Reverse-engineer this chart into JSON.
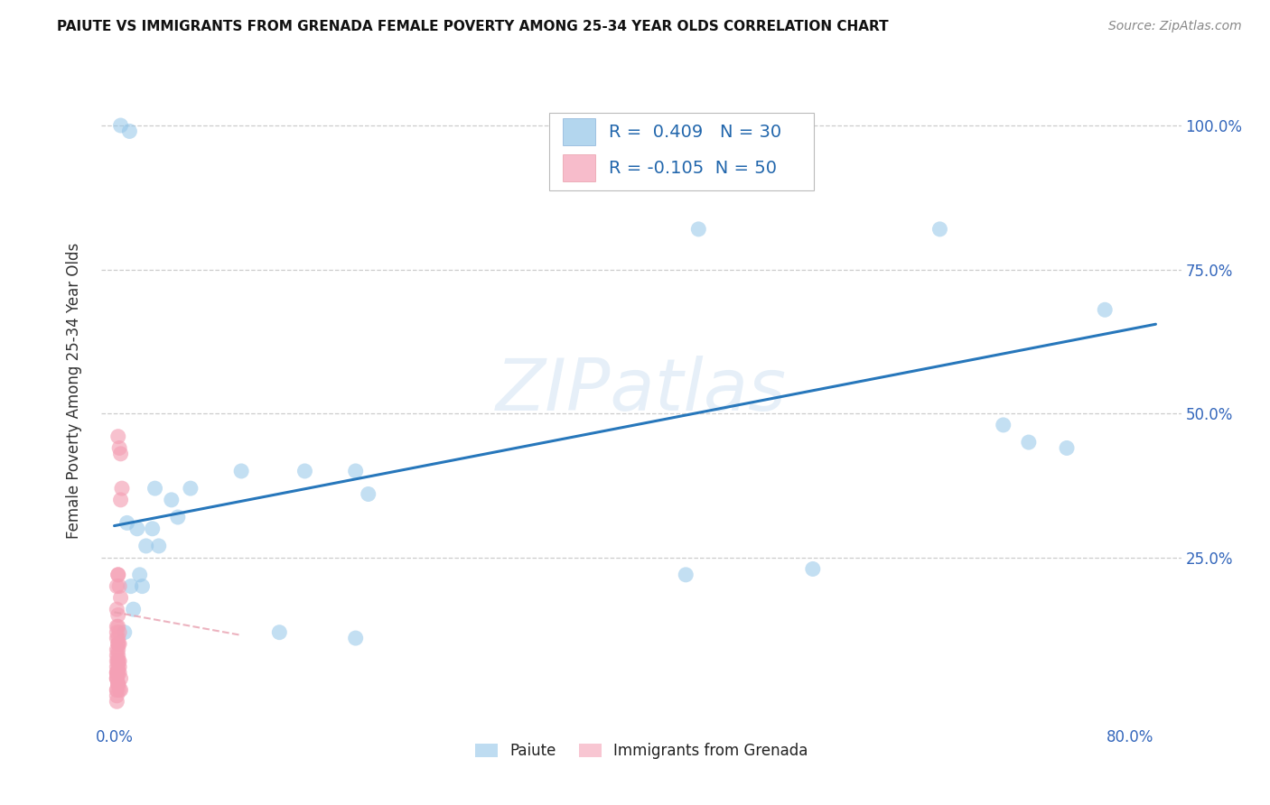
{
  "title": "PAIUTE VS IMMIGRANTS FROM GRENADA FEMALE POVERTY AMONG 25-34 YEAR OLDS CORRELATION CHART",
  "source": "Source: ZipAtlas.com",
  "ylabel": "Female Poverty Among 25-34 Year Olds",
  "xlim": [
    -0.01,
    0.84
  ],
  "ylim": [
    -0.04,
    1.12
  ],
  "xticks": [
    0.0,
    0.1,
    0.2,
    0.3,
    0.4,
    0.5,
    0.6,
    0.7,
    0.8
  ],
  "xticklabels": [
    "0.0%",
    "",
    "",
    "",
    "",
    "",
    "",
    "",
    "80.0%"
  ],
  "yticks": [
    0.0,
    0.25,
    0.5,
    0.75,
    1.0
  ],
  "yticklabels": [
    "",
    "25.0%",
    "50.0%",
    "75.0%",
    "100.0%"
  ],
  "paiute_color": "#93c5e8",
  "grenada_color": "#f4a0b5",
  "paiute_line_color": "#2777bb",
  "grenada_line_color": "#e8a0b0",
  "legend_R_paiute": "R =  0.409",
  "legend_N_paiute": "N = 30",
  "legend_R_grenada": "R = -0.105",
  "legend_N_grenada": "N = 50",
  "watermark": "ZIPatlas",
  "paiute_x": [
    0.005,
    0.012,
    0.018,
    0.032,
    0.045,
    0.06,
    0.1,
    0.15,
    0.02,
    0.025,
    0.03,
    0.05,
    0.19,
    0.2,
    0.45,
    0.46,
    0.55,
    0.65,
    0.7,
    0.72,
    0.75,
    0.78,
    0.013,
    0.022,
    0.035,
    0.13,
    0.19,
    0.015,
    0.008,
    0.01
  ],
  "paiute_y": [
    1.0,
    0.99,
    0.3,
    0.37,
    0.35,
    0.37,
    0.4,
    0.4,
    0.22,
    0.27,
    0.3,
    0.32,
    0.4,
    0.36,
    0.22,
    0.82,
    0.23,
    0.82,
    0.48,
    0.45,
    0.44,
    0.68,
    0.2,
    0.2,
    0.27,
    0.12,
    0.11,
    0.16,
    0.12,
    0.31
  ],
  "grenada_x": [
    0.003,
    0.005,
    0.004,
    0.006,
    0.005,
    0.003,
    0.004,
    0.005,
    0.002,
    0.003,
    0.003,
    0.004,
    0.002,
    0.003,
    0.002,
    0.003,
    0.003,
    0.004,
    0.002,
    0.002,
    0.003,
    0.003,
    0.004,
    0.005,
    0.003,
    0.002,
    0.002,
    0.003,
    0.003,
    0.004,
    0.003,
    0.002,
    0.002,
    0.003,
    0.004,
    0.005,
    0.002,
    0.003,
    0.002,
    0.002,
    0.003,
    0.004,
    0.002,
    0.002,
    0.002,
    0.002,
    0.002,
    0.003,
    0.002,
    0.002
  ],
  "grenada_y": [
    0.46,
    0.43,
    0.44,
    0.37,
    0.35,
    0.22,
    0.2,
    0.18,
    0.16,
    0.15,
    0.13,
    0.12,
    0.11,
    0.1,
    0.09,
    0.08,
    0.07,
    0.06,
    0.05,
    0.04,
    0.05,
    0.06,
    0.05,
    0.04,
    0.03,
    0.02,
    0.02,
    0.1,
    0.09,
    0.07,
    0.07,
    0.05,
    0.04,
    0.03,
    0.02,
    0.02,
    0.2,
    0.22,
    0.13,
    0.12,
    0.11,
    0.1,
    0.08,
    0.07,
    0.06,
    0.05,
    0.04,
    0.03,
    0.01,
    0.0
  ],
  "paiute_line_x0": 0.0,
  "paiute_line_x1": 0.82,
  "paiute_line_y0": 0.305,
  "paiute_line_y1": 0.655,
  "grenada_line_x0": 0.0,
  "grenada_line_x1": 0.1,
  "grenada_line_y0": 0.155,
  "grenada_line_y1": 0.115
}
